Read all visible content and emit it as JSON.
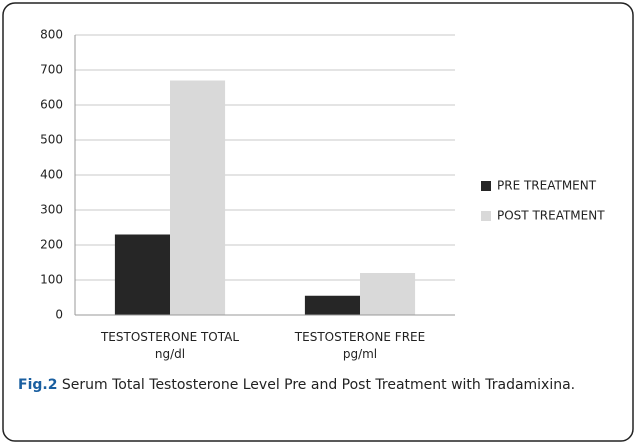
{
  "chart_data": {
    "type": "bar",
    "categories": [
      "TESTOSTERONE TOTAL\nng/dl",
      "TESTOSTERONE FREE\npg/ml"
    ],
    "series": [
      {
        "name": "PRE TREATMENT",
        "color": "#262626",
        "values": [
          230,
          55
        ]
      },
      {
        "name": "POST TREATMENT",
        "color": "#d9d9d9",
        "values": [
          670,
          120
        ]
      }
    ],
    "ylim": [
      0,
      800
    ],
    "yticks": [
      0,
      100,
      200,
      300,
      400,
      500,
      600,
      700,
      800
    ],
    "grid": true,
    "legend": "right",
    "caption": {
      "label": "Fig.2",
      "text": "Serum Total Testosterone Level Pre and Post Treatment with Tradamixina."
    }
  }
}
